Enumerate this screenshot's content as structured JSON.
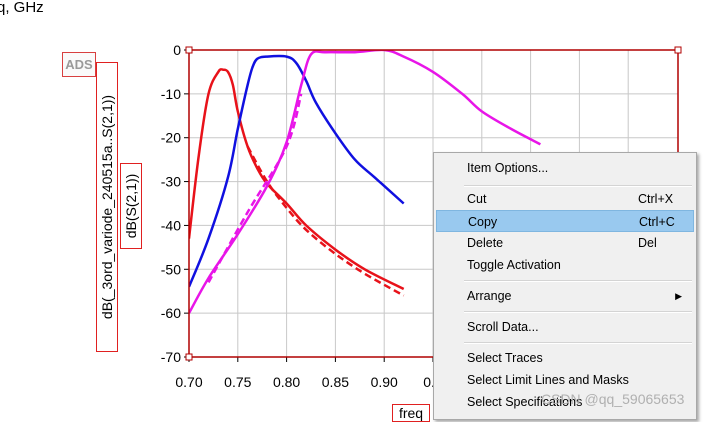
{
  "top_label": "q, GHz",
  "ads_logo": "ADS",
  "ylabel_outer": "dB(_3ord_variode_240515a..S(2,1))",
  "ylabel_inner": "dB(S(2,1))",
  "xlabel": "freq",
  "watermark": "CSDN @qq_59065653",
  "colors": {
    "red": "#e8121a",
    "blue": "#1010e0",
    "magenta": "#e815e8",
    "frame": "#b00000",
    "grid": "#c8c8c8"
  },
  "chart_data": {
    "type": "line",
    "xlim": [
      0.7,
      1.2
    ],
    "ylim": [
      -70,
      0
    ],
    "x_ticks": [
      "0.70",
      "0.75",
      "0.80",
      "0.85",
      "0.90",
      "0.9"
    ],
    "y_ticks": [
      "0",
      "-10",
      "-20",
      "-30",
      "-40",
      "-50",
      "-60",
      "-70"
    ],
    "grid": true,
    "series": [
      {
        "color": "red",
        "style": "solid",
        "x": [
          0.7,
          0.71,
          0.72,
          0.73,
          0.735,
          0.74,
          0.745,
          0.75,
          0.76,
          0.77,
          0.78,
          0.8,
          0.82,
          0.85,
          0.88,
          0.92
        ],
        "y": [
          -43,
          -24,
          -10,
          -5,
          -4.5,
          -5,
          -8,
          -14,
          -22,
          -27,
          -30.5,
          -35,
          -40,
          -45.5,
          -50,
          -54.5
        ]
      },
      {
        "color": "red",
        "style": "dashed",
        "x": [
          0.76,
          0.78,
          0.8,
          0.82,
          0.85,
          0.88,
          0.92
        ],
        "y": [
          -22,
          -30,
          -36,
          -41,
          -46.5,
          -51,
          -56
        ]
      },
      {
        "color": "blue",
        "style": "solid",
        "x": [
          0.7,
          0.72,
          0.74,
          0.75,
          0.76,
          0.765,
          0.77,
          0.78,
          0.8,
          0.81,
          0.82,
          0.83,
          0.85,
          0.87,
          0.89,
          0.92
        ],
        "y": [
          -54,
          -43,
          -29,
          -18,
          -8,
          -4,
          -2,
          -1.5,
          -1.5,
          -3,
          -7,
          -12,
          -19,
          -25,
          -29,
          -35
        ]
      },
      {
        "color": "magenta",
        "style": "solid",
        "x": [
          0.7,
          0.72,
          0.75,
          0.78,
          0.8,
          0.815,
          0.825,
          0.84,
          0.87,
          0.9,
          0.92,
          0.95,
          0.98,
          1.0,
          1.03,
          1.06
        ],
        "y": [
          -60,
          -52,
          -42,
          -31,
          -21,
          -8,
          -1,
          -0.5,
          -0.5,
          0,
          -1.5,
          -5,
          -10,
          -14,
          -18,
          -21.5
        ]
      },
      {
        "color": "magenta",
        "style": "dashed",
        "x": [
          0.72,
          0.76,
          0.8,
          0.815
        ],
        "y": [
          -53,
          -37,
          -22,
          -10
        ]
      }
    ]
  },
  "context_menu": {
    "items": [
      {
        "label": "Item Options...",
        "shortcut": ""
      },
      {
        "label": "Cut",
        "shortcut": "Ctrl+X"
      },
      {
        "label": "Copy",
        "shortcut": "Ctrl+C"
      },
      {
        "label": "Delete",
        "shortcut": "Del"
      },
      {
        "label": "Toggle Activation",
        "shortcut": ""
      },
      {
        "label": "Arrange",
        "shortcut": ""
      },
      {
        "label": "Scroll Data...",
        "shortcut": ""
      },
      {
        "label": "Select Traces",
        "shortcut": ""
      },
      {
        "label": "Select Limit Lines and Masks",
        "shortcut": ""
      },
      {
        "label": "Select Specifications",
        "shortcut": ""
      }
    ]
  }
}
